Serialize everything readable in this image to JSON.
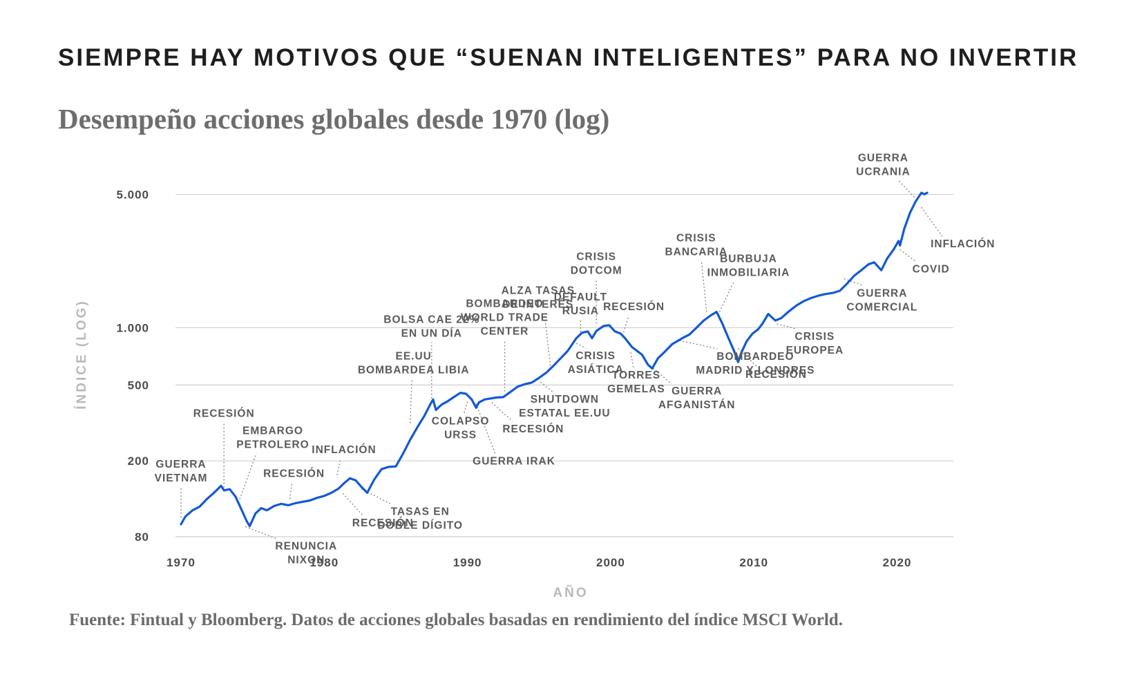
{
  "headline": "SIEMPRE HAY MOTIVOS QUE “SUENAN INTELIGENTES” PARA NO INVERTIR",
  "source": "Fuente: Fintual y Bloomberg. Datos de acciones globales basadas en rendimiento del índice MSCI World.",
  "colors": {
    "series": "#1458d6",
    "grid": "#cfcfcf",
    "axis_title": "#b9b9b9"
  },
  "chart_data": {
    "type": "line",
    "title": "Desempeño acciones globales desde 1970 (log)",
    "xlabel": "AÑO",
    "ylabel": "ÍNDICE (LOG)",
    "y_scale": "log",
    "xlim": [
      1970,
      2022
    ],
    "ylim": [
      80,
      5500
    ],
    "grid": "horizontal",
    "x_ticks": [
      {
        "value": 1970,
        "label": "1970"
      },
      {
        "value": 1980,
        "label": "1980"
      },
      {
        "value": 1990,
        "label": "1990"
      },
      {
        "value": 2000,
        "label": "2000"
      },
      {
        "value": 2010,
        "label": "2010"
      },
      {
        "value": 2020,
        "label": "2020"
      }
    ],
    "y_ticks": [
      {
        "value": 80,
        "label": "80"
      },
      {
        "value": 200,
        "label": "200"
      },
      {
        "value": 500,
        "label": "500"
      },
      {
        "value": 1000,
        "label": "1.000"
      },
      {
        "value": 5000,
        "label": "5.000"
      }
    ],
    "series": [
      {
        "x": [
          1970.0,
          1970.3,
          1970.8,
          1971.3,
          1971.8,
          1972.3,
          1972.8,
          1973.0,
          1973.4,
          1973.8,
          1974.2,
          1974.6,
          1974.8,
          1975.2,
          1975.6,
          1976.0,
          1976.5,
          1977.0,
          1977.5,
          1978.0,
          1978.5,
          1979.0,
          1979.5,
          1980.0,
          1980.5,
          1981.0,
          1981.4,
          1981.8,
          1982.2,
          1982.6,
          1983.0,
          1983.5,
          1984.0,
          1984.5,
          1985.0,
          1985.5,
          1986.0,
          1986.5,
          1987.0,
          1987.4,
          1987.6,
          1987.8,
          1988.2,
          1988.6,
          1989.0,
          1989.5,
          1989.9,
          1990.3,
          1990.6,
          1990.8,
          1991.2,
          1991.6,
          1992.0,
          1992.5,
          1993.0,
          1993.5,
          1994.0,
          1994.5,
          1995.0,
          1995.5,
          1996.0,
          1996.5,
          1997.0,
          1997.6,
          1998.0,
          1998.4,
          1998.7,
          1999.0,
          1999.5,
          1999.9,
          2000.3,
          2000.7,
          2001.0,
          2001.5,
          2001.8,
          2002.2,
          2002.6,
          2002.9,
          2003.3,
          2003.8,
          2004.3,
          2005.0,
          2005.5,
          2006.0,
          2006.5,
          2007.0,
          2007.4,
          2007.8,
          2008.2,
          2008.6,
          2008.9,
          2009.2,
          2009.5,
          2009.9,
          2010.3,
          2010.6,
          2011.0,
          2011.5,
          2011.9,
          2012.4,
          2013.0,
          2013.5,
          2014.0,
          2014.5,
          2015.0,
          2015.5,
          2016.0,
          2016.5,
          2017.0,
          2017.5,
          2018.0,
          2018.4,
          2018.9,
          2019.3,
          2019.8,
          2020.1,
          2020.2,
          2020.5,
          2020.9,
          2021.3,
          2021.7,
          2021.9,
          2022.1
        ],
        "y": [
          93,
          102,
          110,
          115,
          126,
          136,
          148,
          140,
          142,
          130,
          112,
          96,
          91,
          106,
          113,
          110,
          116,
          119,
          117,
          120,
          122,
          124,
          128,
          131,
          136,
          143,
          153,
          162,
          158,
          146,
          136,
          160,
          181,
          186,
          187,
          218,
          258,
          300,
          345,
          395,
          420,
          370,
          395,
          410,
          430,
          455,
          450,
          420,
          380,
          405,
          420,
          425,
          430,
          432,
          460,
          490,
          505,
          515,
          545,
          580,
          630,
          690,
          755,
          880,
          940,
          955,
          880,
          960,
          1020,
          1030,
          955,
          930,
          880,
          790,
          760,
          720,
          640,
          610,
          690,
          750,
          820,
          880,
          920,
          1000,
          1090,
          1160,
          1210,
          1050,
          890,
          760,
          660,
          760,
          850,
          930,
          980,
          1050,
          1180,
          1090,
          1120,
          1210,
          1310,
          1380,
          1430,
          1470,
          1500,
          1520,
          1560,
          1700,
          1870,
          2000,
          2150,
          2200,
          2000,
          2300,
          2600,
          2850,
          2700,
          3300,
          4000,
          4600,
          5100,
          5000,
          5100
        ]
      }
    ],
    "annotations": [
      {
        "lines": [
          "GUERRA",
          "VIETNAM"
        ],
        "x": 1970.0,
        "y": 96
      },
      {
        "lines": [
          "RECESIÓN"
        ],
        "x": 1973.0,
        "y": 138
      },
      {
        "lines": [
          "EMBARGO",
          "PETROLERO"
        ],
        "x": 1974.1,
        "y": 120
      },
      {
        "lines": [
          "RENUNCIA",
          "NIXON"
        ],
        "x": 1974.5,
        "y": 95
      },
      {
        "lines": [
          "RECESIÓN"
        ],
        "x": 1977.6,
        "y": 120
      },
      {
        "lines": [
          "INFLACIÓN"
        ],
        "x": 1980.9,
        "y": 160
      },
      {
        "lines": [
          "TASAS EN",
          "DOBLE DÍGITO"
        ],
        "x": 1982.6,
        "y": 150
      },
      {
        "lines": [
          "RECESIÓN"
        ],
        "x": 1981.3,
        "y": 142
      },
      {
        "lines": [
          "EE.UU",
          "BOMBARDEA LIBIA"
        ],
        "x": 1986.0,
        "y": 300
      },
      {
        "lines": [
          "BOLSA CAE 22%",
          "EN UN DÍA"
        ],
        "x": 1987.5,
        "y": 405
      },
      {
        "lines": [
          "COLAPSO",
          "URSS"
        ],
        "x": 1990.0,
        "y": 430
      },
      {
        "lines": [
          "GUERRA IRAK"
        ],
        "x": 1990.6,
        "y": 420
      },
      {
        "lines": [
          "RECESIÓN"
        ],
        "x": 1991.7,
        "y": 425
      },
      {
        "lines": [
          "BOMBARDEO",
          "WORLD TRADE",
          "CENTER"
        ],
        "x": 1992.6,
        "y": 440
      },
      {
        "lines": [
          "SHUTDOWN",
          "ESTATAL EE.UU"
        ],
        "x": 1995.1,
        "y": 545
      },
      {
        "lines": [
          "ALZA TASAS",
          "DE INTERÉS"
        ],
        "x": 1995.8,
        "y": 600
      },
      {
        "lines": [
          "CRISIS",
          "ASIÁTICA"
        ],
        "x": 1997.6,
        "y": 870
      },
      {
        "lines": [
          "DEFAULT",
          "RUSIA"
        ],
        "x": 1997.9,
        "y": 900
      },
      {
        "lines": [
          "CRISIS",
          "DOTCOM"
        ],
        "x": 1999.0,
        "y": 1000
      },
      {
        "lines": [
          "RECESIÓN"
        ],
        "x": 2000.9,
        "y": 900
      },
      {
        "lines": [
          "TORRES",
          "GEMELAS"
        ],
        "x": 2001.4,
        "y": 780
      },
      {
        "lines": [
          "GUERRA",
          "AFGANISTÁN"
        ],
        "x": 2002.4,
        "y": 700
      },
      {
        "lines": [
          "BOMBARDEO",
          "MADRID Y LONDRES"
        ],
        "x": 2004.8,
        "y": 900
      },
      {
        "lines": [
          "CRISIS",
          "BANCARIA"
        ],
        "x": 2006.7,
        "y": 1150
      },
      {
        "lines": [
          "BURBUJA",
          "INMOBILIARIA"
        ],
        "x": 2007.6,
        "y": 1150
      },
      {
        "lines": [
          "RECESIÓN"
        ],
        "x": 2008.9,
        "y": 820
      },
      {
        "lines": [
          "CRISIS",
          "EUROPEA"
        ],
        "x": 2011.6,
        "y": 1100
      },
      {
        "lines": [
          "GUERRA",
          "COMERCIAL"
        ],
        "x": 2016.3,
        "y": 1900
      },
      {
        "lines": [
          "COVID"
        ],
        "x": 2020.2,
        "y": 2700
      },
      {
        "lines": [
          "GUERRA",
          "UCRANIA"
        ],
        "x": 2021.2,
        "y": 4600
      },
      {
        "lines": [
          "INFLACIÓN"
        ],
        "x": 2021.7,
        "y": 4500
      }
    ]
  }
}
